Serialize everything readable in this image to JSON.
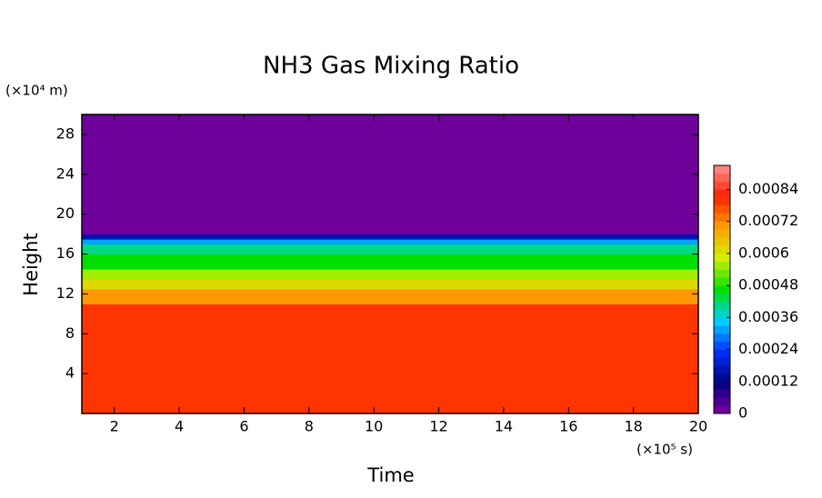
{
  "chart_data": {
    "type": "contour",
    "title": "NH3 Gas Mixing Ratio",
    "x_label": "Time",
    "y_label": "Height",
    "x_unit": "(×10⁵ s)",
    "y_unit": "(×10⁴ m)",
    "xlim": [
      1,
      20
    ],
    "xticks": [
      2,
      4,
      6,
      8,
      10,
      12,
      14,
      16,
      18,
      20
    ],
    "ylim": [
      0,
      30
    ],
    "yticks": [
      4,
      8,
      12,
      16,
      20,
      24,
      28
    ],
    "y_edges": [
      0,
      11,
      12.5,
      13.5,
      14.5,
      16,
      17,
      17.5,
      18,
      30
    ],
    "values": [
      0.00078,
      0.0007,
      0.00062,
      0.00054,
      0.00046,
      0.0004,
      0.0003,
      0.00015,
      0
    ],
    "clim": [
      0,
      0.00093
    ],
    "clevel_step": 3e-05,
    "cticks": [
      0,
      0.00012,
      0.00024,
      0.00036,
      0.00048,
      0.0006,
      0.00072,
      0.00084
    ],
    "colormap": [
      "#7f00a0",
      "#000080",
      "#0030ff",
      "#00d0ff",
      "#00e000",
      "#d0f000",
      "#ffa000",
      "#ff2000",
      "#ff9090"
    ]
  }
}
